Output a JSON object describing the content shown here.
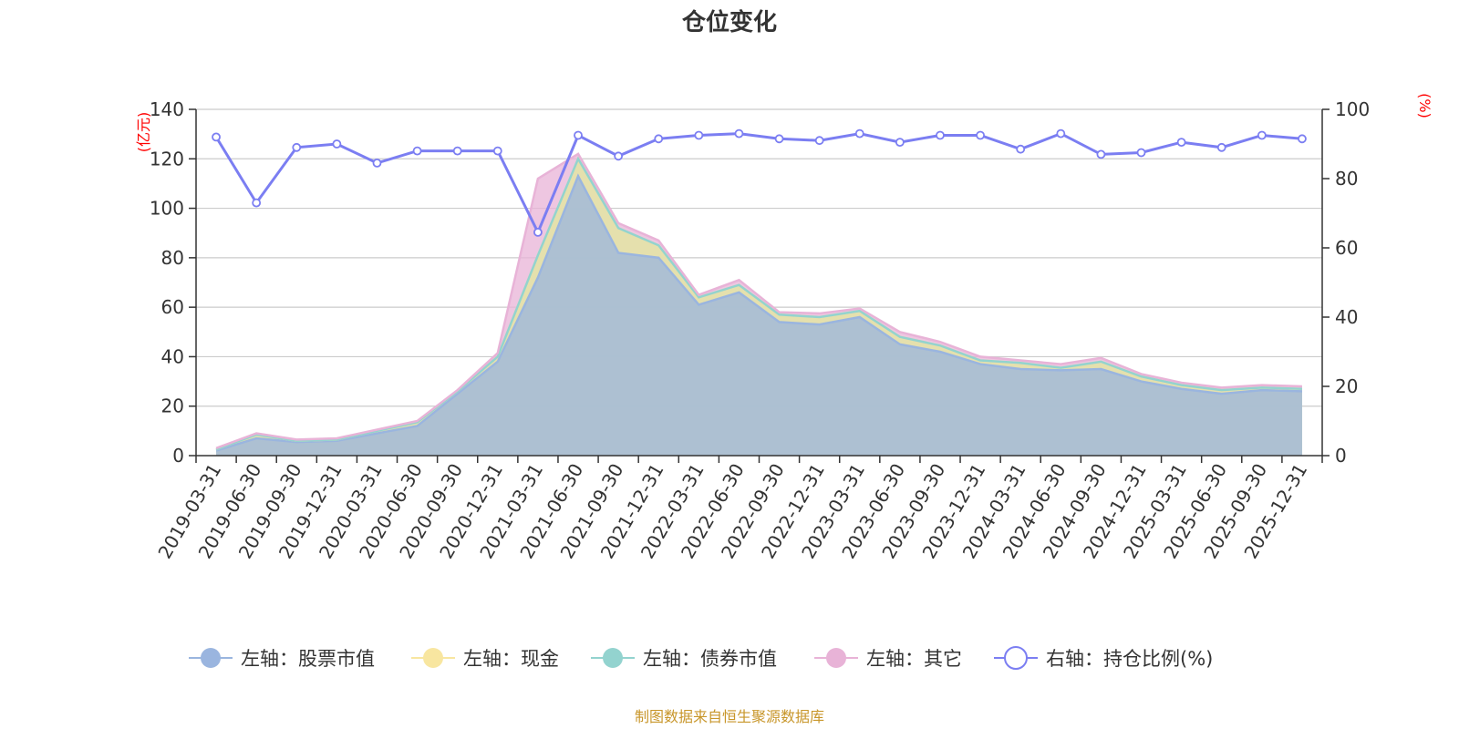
{
  "chart_data": {
    "type": "area",
    "title": "仓位变化",
    "left_unit": "(亿元)",
    "right_unit": "(%)",
    "ylim_left": [
      0,
      140
    ],
    "yticks_left": [
      0,
      20,
      40,
      60,
      80,
      100,
      120,
      140
    ],
    "ylim_right": [
      0,
      100
    ],
    "yticks_right": [
      0,
      20,
      40,
      60,
      80,
      100
    ],
    "categories": [
      "2019-03-31",
      "2019-06-30",
      "2019-09-30",
      "2019-12-31",
      "2020-03-31",
      "2020-06-30",
      "2020-09-30",
      "2020-12-31",
      "2021-03-31",
      "2021-06-30",
      "2021-09-30",
      "2021-12-31",
      "2022-03-31",
      "2022-06-30",
      "2022-09-30",
      "2022-12-31",
      "2023-03-31",
      "2023-06-30",
      "2023-09-30",
      "2023-12-31",
      "2024-03-31",
      "2024-06-30",
      "2024-09-30",
      "2024-12-31",
      "2025-03-31",
      "2025-06-30",
      "2025-09-30",
      "2025-12-31"
    ],
    "series": [
      {
        "name": "左轴：股票市值",
        "axis": "left",
        "kind": "area",
        "color": "#9ab5df",
        "values": [
          2,
          7,
          5.5,
          6,
          9,
          12,
          25,
          38,
          72,
          113,
          82,
          80,
          61,
          66,
          54,
          53,
          56,
          45,
          42,
          37,
          35,
          34.5,
          35,
          30,
          27,
          25,
          26.5,
          26
        ]
      },
      {
        "name": "左轴：现金",
        "axis": "left",
        "kind": "area",
        "color": "#f8e6a0",
        "values": [
          0.5,
          1.5,
          0.5,
          0.5,
          1,
          1.5,
          1,
          2,
          9,
          7,
          10,
          5,
          3,
          3,
          3,
          3,
          2.5,
          3,
          2.5,
          1.5,
          2.5,
          1,
          3,
          2,
          1.5,
          1.5,
          1,
          1
        ]
      },
      {
        "name": "左轴：债券市值",
        "axis": "left",
        "kind": "area",
        "color": "#93d3cf",
        "values": [
          0,
          0,
          0,
          0,
          0,
          0,
          0,
          0,
          0,
          0,
          0,
          0,
          0,
          0,
          0,
          0,
          0,
          0,
          0,
          0,
          0,
          0,
          0,
          0,
          0,
          0,
          0,
          0
        ]
      },
      {
        "name": "左轴：其它",
        "axis": "left",
        "kind": "area",
        "color": "#e8b3d7",
        "values": [
          0.5,
          0.5,
          0.5,
          0.5,
          0.5,
          0.5,
          0.5,
          1.5,
          31,
          2,
          2,
          2,
          1,
          2,
          1,
          1.5,
          1,
          2,
          1.5,
          1.5,
          1,
          1.5,
          1.5,
          1,
          1,
          1,
          1,
          1
        ]
      },
      {
        "name": "右轴：持仓比例(%)",
        "axis": "right",
        "kind": "line",
        "color": "#7b7ef2",
        "values": [
          92,
          73,
          89,
          90,
          84.5,
          88,
          88,
          88,
          64.5,
          92.5,
          86.5,
          91.5,
          92.5,
          93,
          91.5,
          91,
          93,
          90.5,
          92.5,
          92.5,
          88.5,
          93,
          87,
          87.5,
          90.5,
          89,
          92.5,
          91.5
        ]
      }
    ]
  },
  "source": "制图数据来自恒生聚源数据库"
}
